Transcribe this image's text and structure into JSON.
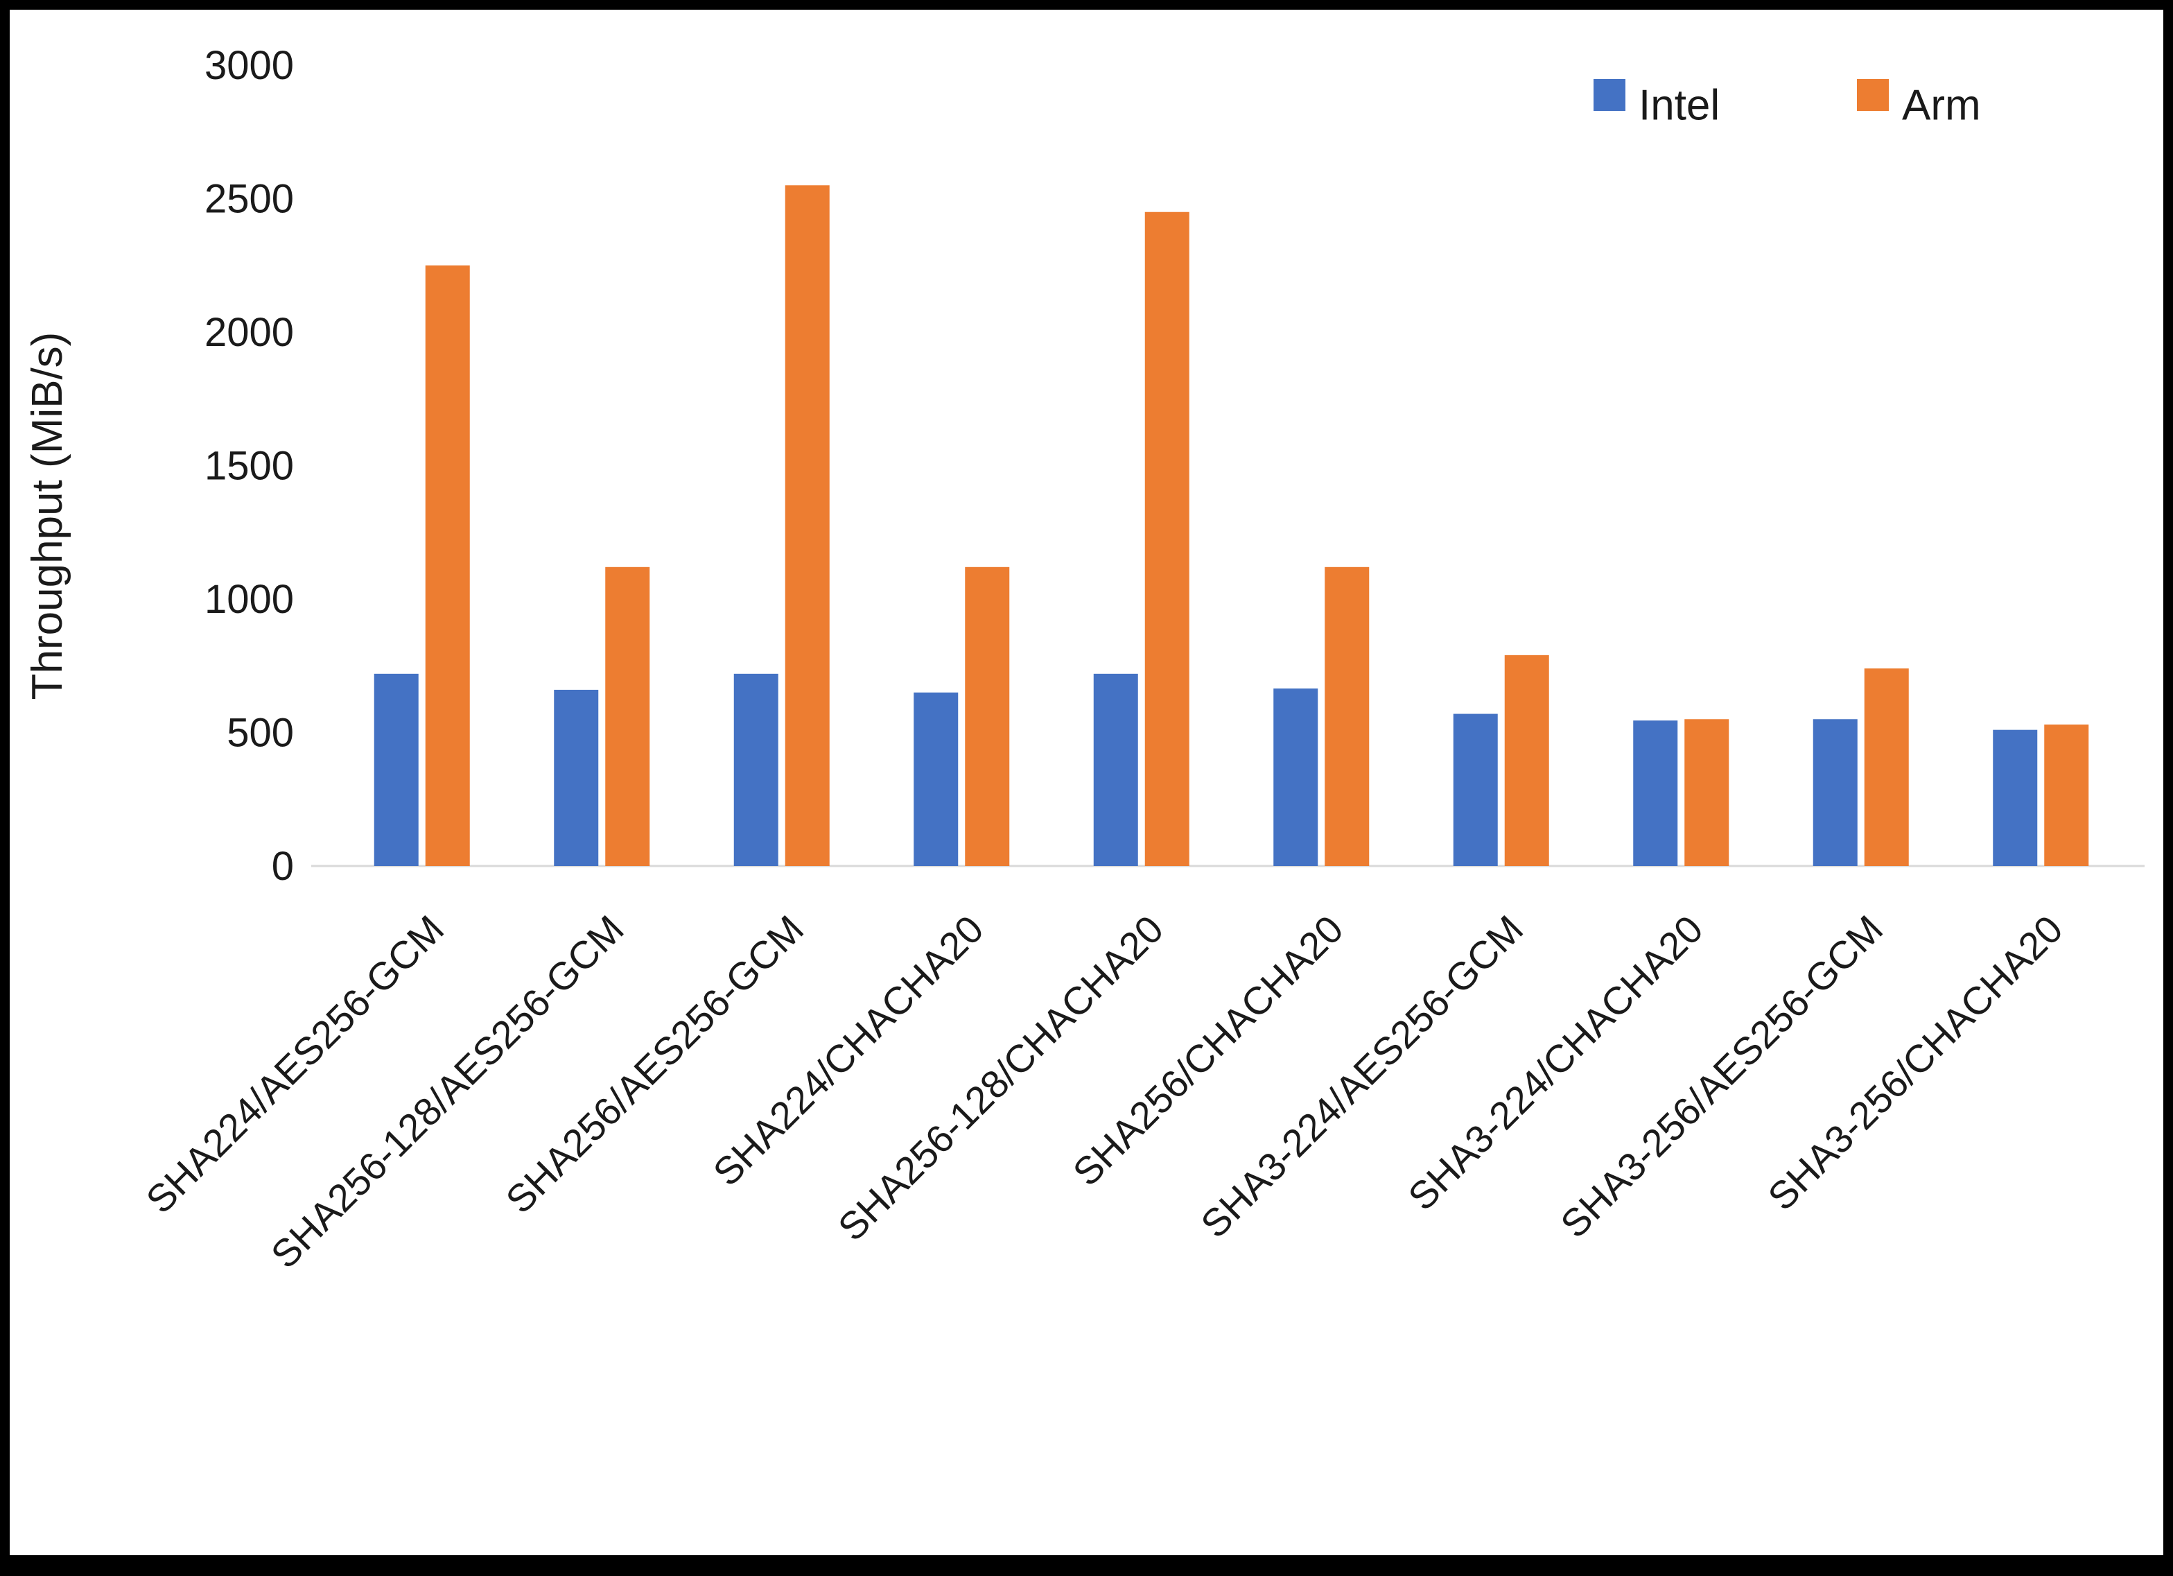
{
  "chart_data": {
    "type": "bar",
    "title": "",
    "xlabel": "",
    "ylabel": "Throughput (MiB/s)",
    "ylim": [
      0,
      3000
    ],
    "ytick_step": 500,
    "grid": false,
    "legend_position": "top-right",
    "axis_line_color": "#d9d9d9",
    "categories": [
      "SHA224/AES256-GCM",
      "SHA256-128/AES256-GCM",
      "SHA256/AES256-GCM",
      "SHA224/CHACHA20",
      "SHA256-128/CHACHA20",
      "SHA256/CHACHA20",
      "SHA3-224/AES256-GCM",
      "SHA3-224/CHACHA20",
      "SHA3-256/AES256-GCM",
      "SHA3-256/CHACHA20"
    ],
    "series": [
      {
        "name": "Intel",
        "color": "#4472C4",
        "values": [
          720,
          660,
          720,
          650,
          720,
          665,
          570,
          545,
          550,
          510
        ]
      },
      {
        "name": "Arm",
        "color": "#ED7D31",
        "values": [
          2250,
          1120,
          2550,
          1120,
          2450,
          1120,
          790,
          550,
          740,
          530
        ]
      }
    ],
    "ytick_labels": [
      "0",
      "500",
      "1000",
      "1500",
      "2000",
      "2500",
      "3000"
    ]
  }
}
